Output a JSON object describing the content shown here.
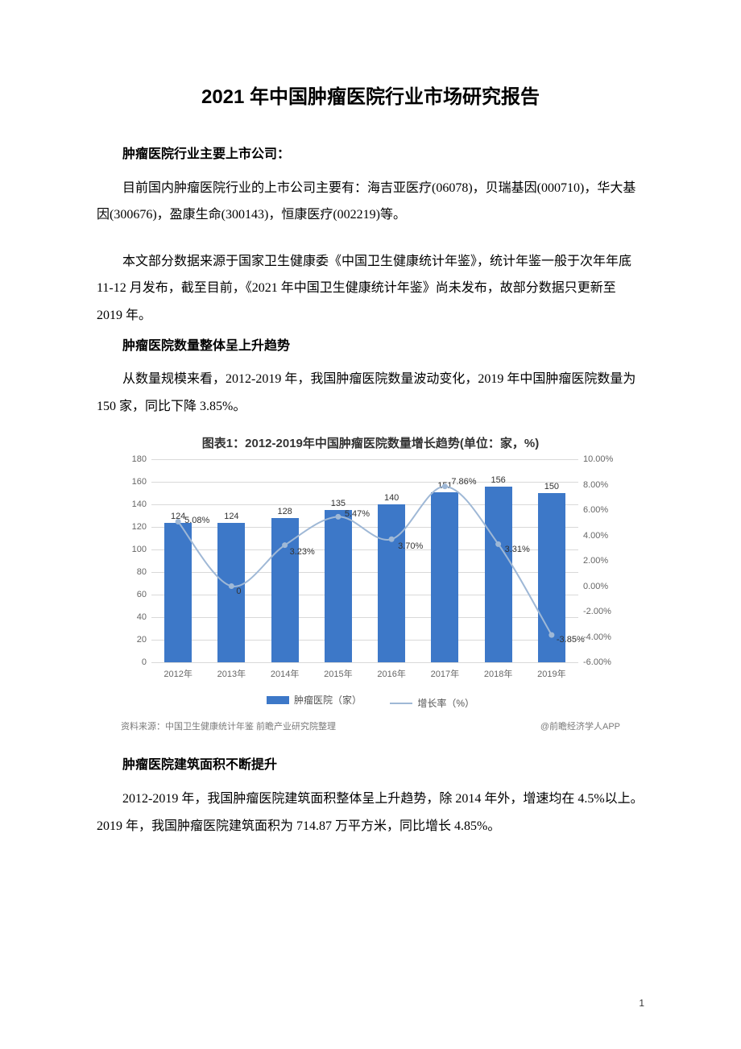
{
  "title": "2021 年中国肿瘤医院行业市场研究报告",
  "h1": "肿瘤医院行业主要上市公司：",
  "p1": "目前国内肿瘤医院行业的上市公司主要有：海吉亚医疗(06078)，贝瑞基因(000710)，华大基因(300676)，盈康生命(300143)，恒康医疗(002219)等。",
  "p2": "本文部分数据来源于国家卫生健康委《中国卫生健康统计年鉴》，统计年鉴一般于次年年底 11-12 月发布，截至目前，《2021 年中国卫生健康统计年鉴》尚未发布，故部分数据只更新至 2019 年。",
  "h2": "肿瘤医院数量整体呈上升趋势",
  "p3": "从数量规模来看，2012-2019 年，我国肿瘤医院数量波动变化，2019 年中国肿瘤医院数量为 150 家，同比下降 3.85%。",
  "chart": {
    "title": "图表1：2012-2019年中国肿瘤医院数量增长趋势(单位：家，%)",
    "type": "bar+line",
    "categories": [
      "2012年",
      "2013年",
      "2014年",
      "2015年",
      "2016年",
      "2017年",
      "2018年",
      "2019年"
    ],
    "bar_values": [
      124,
      124,
      128,
      135,
      140,
      151,
      156,
      150
    ],
    "bar_color": "#3d78c8",
    "line_values_pct": [
      5.08,
      0,
      3.23,
      5.47,
      3.7,
      7.86,
      3.31,
      -3.85
    ],
    "line_labels": [
      "5.08%",
      "0",
      "3.23%",
      "5.47%",
      "3.70%",
      "7.86%",
      "3.31%",
      "-3.85%"
    ],
    "line_color": "#9fb8d6",
    "yl": {
      "min": 0,
      "max": 180,
      "ticks": [
        0,
        20,
        40,
        60,
        80,
        100,
        120,
        140,
        160,
        180
      ]
    },
    "yr": {
      "min": -6,
      "max": 10,
      "ticks": [
        "-6.00%",
        "-4.00%",
        "-2.00%",
        "0.00%",
        "2.00%",
        "4.00%",
        "6.00%",
        "8.00%",
        "10.00%"
      ]
    },
    "legend_bar": "肿瘤医院（家）",
    "legend_line": "增长率（%）",
    "grid_color": "#d9d9d9",
    "background_color": "#ffffff"
  },
  "source_left": "资料来源：中国卫生健康统计年鉴 前瞻产业研究院整理",
  "source_right": "@前瞻经济学人APP",
  "h3": "肿瘤医院建筑面积不断提升",
  "p4": "2012-2019 年，我国肿瘤医院建筑面积整体呈上升趋势，除 2014 年外，增速均在 4.5%以上。2019 年，我国肿瘤医院建筑面积为 714.87 万平方米，同比增长 4.85%。",
  "page_number": "1"
}
